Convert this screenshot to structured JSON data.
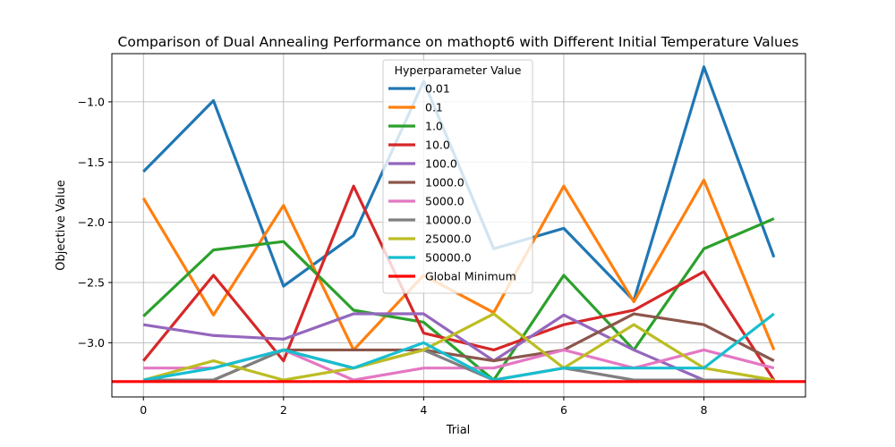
{
  "chart_data": {
    "type": "line",
    "title": "Comparison of Dual Annealing Performance on mathopt6 with Different Initial Temperature Values",
    "xlabel": "Trial",
    "ylabel": "Objective Value",
    "xlim": [
      -0.45,
      9.45
    ],
    "ylim": [
      -3.45,
      -0.6
    ],
    "xticks": [
      0,
      2,
      4,
      6,
      8
    ],
    "yticks": [
      -3.0,
      -2.5,
      -2.0,
      -1.5,
      -1.0
    ],
    "grid": true,
    "legend": {
      "title": "Hyperparameter Value",
      "placement": "top-center"
    },
    "x": [
      0,
      1,
      2,
      3,
      4,
      5,
      6,
      7,
      8,
      9
    ],
    "series": [
      {
        "name": "0.01",
        "color": "#1f77b4",
        "values": [
          -1.58,
          -0.99,
          -2.53,
          -2.11,
          -0.83,
          -2.22,
          -2.05,
          -2.65,
          -0.71,
          -2.29
        ]
      },
      {
        "name": "0.1",
        "color": "#ff7f0e",
        "values": [
          -1.8,
          -2.77,
          -1.86,
          -3.06,
          -2.44,
          -2.75,
          -1.7,
          -2.66,
          -1.65,
          -3.06
        ]
      },
      {
        "name": "1.0",
        "color": "#2ca02c",
        "values": [
          -2.78,
          -2.23,
          -2.16,
          -2.73,
          -2.83,
          -3.31,
          -2.44,
          -3.06,
          -2.22,
          -1.97
        ]
      },
      {
        "name": "10.0",
        "color": "#d62728",
        "values": [
          -3.15,
          -2.44,
          -3.15,
          -1.7,
          -2.92,
          -3.06,
          -2.85,
          -2.73,
          -2.41,
          -3.31
        ]
      },
      {
        "name": "100.0",
        "color": "#9467bd",
        "values": [
          -2.85,
          -2.94,
          -2.97,
          -2.76,
          -2.76,
          -3.15,
          -2.77,
          -3.06,
          -3.31,
          -3.31
        ]
      },
      {
        "name": "1000.0",
        "color": "#8c564b",
        "values": [
          -3.31,
          -3.31,
          -3.06,
          -3.06,
          -3.06,
          -3.15,
          -3.06,
          -2.76,
          -2.85,
          -3.15
        ]
      },
      {
        "name": "5000.0",
        "color": "#e377c2",
        "values": [
          -3.21,
          -3.21,
          -3.06,
          -3.31,
          -3.21,
          -3.21,
          -3.06,
          -3.21,
          -3.06,
          -3.21
        ]
      },
      {
        "name": "10000.0",
        "color": "#7f7f7f",
        "values": [
          -3.31,
          -3.31,
          -3.06,
          -3.21,
          -3.06,
          -3.31,
          -3.21,
          -3.31,
          -3.31,
          -3.31
        ]
      },
      {
        "name": "25000.0",
        "color": "#bcbd22",
        "values": [
          -3.31,
          -3.15,
          -3.31,
          -3.21,
          -3.06,
          -2.76,
          -3.21,
          -2.85,
          -3.21,
          -3.31
        ]
      },
      {
        "name": "50000.0",
        "color": "#17becf",
        "values": [
          -3.31,
          -3.21,
          -3.06,
          -3.21,
          -3.0,
          -3.31,
          -3.21,
          -3.21,
          -3.21,
          -2.76
        ]
      },
      {
        "name": "Global Minimum",
        "color": "#ff0000",
        "values": [
          -3.3224,
          -3.3224,
          -3.3224,
          -3.3224,
          -3.3224,
          -3.3224,
          -3.3224,
          -3.3224,
          -3.3224,
          -3.3224
        ],
        "horizontal": true
      }
    ]
  }
}
